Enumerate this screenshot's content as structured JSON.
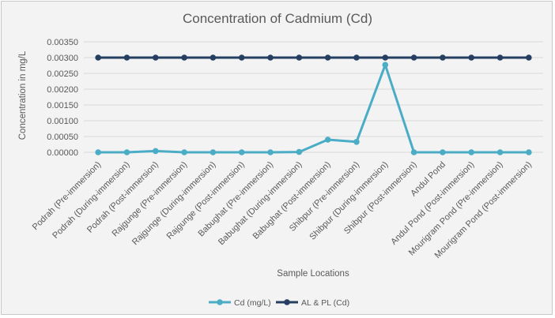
{
  "chart_data": {
    "type": "line",
    "title": "Concentration of Cadmium (Cd)",
    "xlabel": "Sample Locations",
    "ylabel": "Concentration in mg/L",
    "categories": [
      "Podrah (Pre-immersion)",
      "Podrah (During-immersion)",
      "Podrah (Post-immersion)",
      "Rajgunge (Pre-immersion)",
      "Rajgunge (During-immersion)",
      "Rajgunge (Post-immersion)",
      "Babughat (Pre-immersion)",
      "Babughat (During-immersion)",
      "Babughat (Post-immersion)",
      "Shibpur (Pre-immersion)",
      "Shibpur (During-immersion)",
      "Shibpur (Post-immersion)",
      "Andul Pond",
      "Andul Pond (Post-immersion)",
      "Mourigram Pond (Pre-immersion)",
      "Mourigram Pond (Post-immersion)"
    ],
    "yticks": [
      "0.00000",
      "0.00050",
      "0.00100",
      "0.00150",
      "0.00200",
      "0.00250",
      "0.00300",
      "0.00350"
    ],
    "ylim": [
      0,
      0.0035
    ],
    "grid": true,
    "legend_position": "bottom",
    "series": [
      {
        "name": "Cd (mg/L)",
        "color": "#4bacc6",
        "values": [
          0.0,
          0.0,
          4e-05,
          0.0,
          0.0,
          0.0,
          0.0,
          1e-05,
          0.0004,
          0.00033,
          0.00277,
          0.0,
          0.0,
          0.0,
          0.0,
          0.0
        ]
      },
      {
        "name": "AL & PL (Cd)",
        "color": "#243f60",
        "values": [
          0.003,
          0.003,
          0.003,
          0.003,
          0.003,
          0.003,
          0.003,
          0.003,
          0.003,
          0.003,
          0.003,
          0.003,
          0.003,
          0.003,
          0.003,
          0.003
        ]
      }
    ]
  }
}
